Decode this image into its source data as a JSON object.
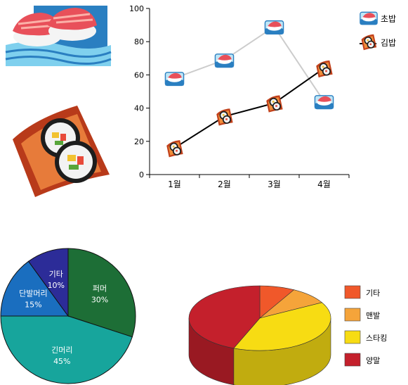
{
  "chart_data": [
    {
      "type": "line",
      "categories": [
        "1월",
        "2월",
        "3월",
        "4월"
      ],
      "yticks": [
        0,
        20,
        40,
        60,
        80,
        100
      ],
      "ylim": [
        0,
        100
      ],
      "grid": false,
      "legend_position": "top-right",
      "series": [
        {
          "name": "초밥",
          "values": [
            58,
            69,
            89,
            44
          ],
          "color": "#cccccc",
          "marker": "sushi-icon"
        },
        {
          "name": "김밥",
          "values": [
            16,
            35,
            43,
            64
          ],
          "color": "#000000",
          "marker": "gimbap-icon"
        }
      ]
    },
    {
      "type": "pie",
      "slices": [
        {
          "name": "퍼머",
          "value": 30,
          "label": "30%",
          "color": "#1d6e36"
        },
        {
          "name": "긴머리",
          "value": 45,
          "label": "45%",
          "color": "#17a59c"
        },
        {
          "name": "단발머리",
          "value": 15,
          "label": "15%",
          "color": "#1a6ebf"
        },
        {
          "name": "기타",
          "value": 10,
          "label": "10%",
          "color": "#2c2c98"
        }
      ]
    },
    {
      "type": "pie",
      "style": "3d",
      "legend_position": "right",
      "slices": [
        {
          "name": "기타",
          "value": 8,
          "color": "#f0582a"
        },
        {
          "name": "맨발",
          "value": 9,
          "color": "#f5a43a"
        },
        {
          "name": "스타킹",
          "value": 39,
          "color": "#f7dc13"
        },
        {
          "name": "양말",
          "value": 44,
          "color": "#c4202c"
        }
      ]
    }
  ]
}
